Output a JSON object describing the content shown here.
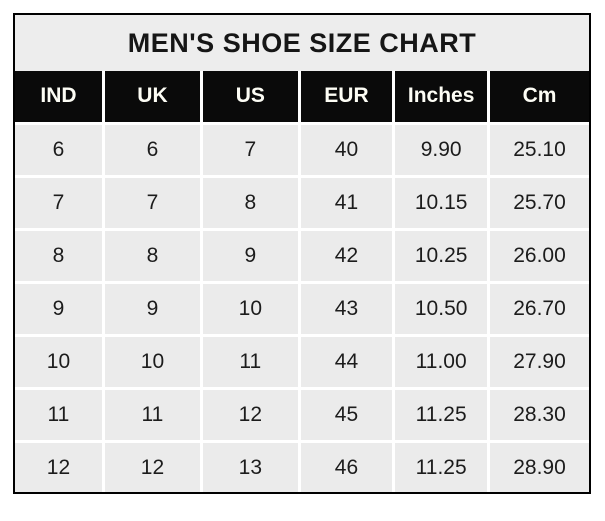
{
  "colors": {
    "outer_border": "#000000",
    "title_background": "#ededed",
    "header_background": "#0a0a0a",
    "header_text": "#ffffff",
    "cell_background": "#ebebeb",
    "cell_text": "#1c1c1c",
    "cell_gap": "#ffffff"
  },
  "chart_data": {
    "type": "table",
    "title": "MEN'S SHOE SIZE CHART",
    "columns": [
      "IND",
      "UK",
      "US",
      "EUR",
      "Inches",
      "Cm"
    ],
    "rows": [
      [
        "6",
        "6",
        "7",
        "40",
        "9.90",
        "25.10"
      ],
      [
        "7",
        "7",
        "8",
        "41",
        "10.15",
        "25.70"
      ],
      [
        "8",
        "8",
        "9",
        "42",
        "10.25",
        "26.00"
      ],
      [
        "9",
        "9",
        "10",
        "43",
        "10.50",
        "26.70"
      ],
      [
        "10",
        "10",
        "11",
        "44",
        "11.00",
        "27.90"
      ],
      [
        "11",
        "11",
        "12",
        "45",
        "11.25",
        "28.30"
      ],
      [
        "12",
        "12",
        "13",
        "46",
        "11.25",
        "28.90"
      ]
    ]
  }
}
